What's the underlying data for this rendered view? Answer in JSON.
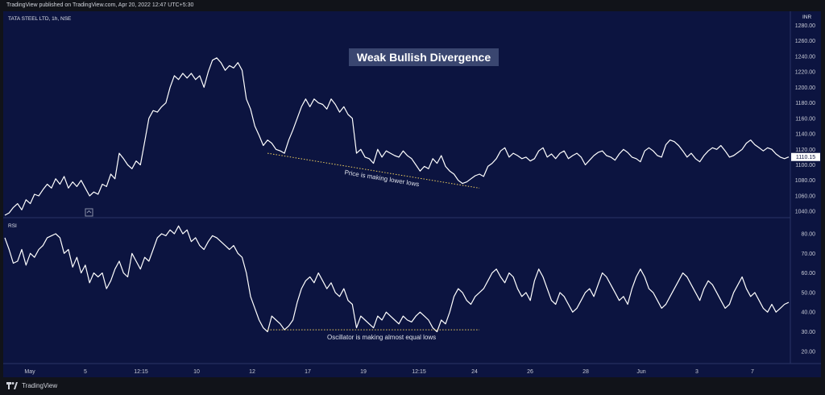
{
  "header": {
    "published_text": "TradingView published on TradingView.com, Apr 20, 2022 12:47 UTC+5:30"
  },
  "footer": {
    "brand": "TradingView",
    "logo_icon": "tradingview-logo-icon"
  },
  "colors": {
    "background": "#0c1440",
    "line": "#ffffff",
    "trendline": "#f0d060",
    "price_label_bg": "#ffffff",
    "title_bg": "#3a4670"
  },
  "chart_data": [
    {
      "type": "line",
      "pane": "price",
      "symbol_label": "TATA STEEL LTD, 1h, NSE",
      "title": "Weak Bullish Divergence",
      "currency": "INR",
      "last_price_label": "1110.15",
      "ylim": [
        1035,
        1295
      ],
      "yticks": [
        "1040.00",
        "1060.00",
        "1080.00",
        "1100.00",
        "1120.00",
        "1140.00",
        "1160.00",
        "1180.00",
        "1200.00",
        "1220.00",
        "1240.00",
        "1260.00",
        "1280.00"
      ],
      "values": [
        1035,
        1038,
        1045,
        1050,
        1042,
        1055,
        1050,
        1062,
        1060,
        1068,
        1075,
        1070,
        1082,
        1075,
        1085,
        1070,
        1078,
        1072,
        1080,
        1070,
        1060,
        1065,
        1062,
        1075,
        1072,
        1088,
        1082,
        1115,
        1108,
        1100,
        1095,
        1105,
        1100,
        1130,
        1160,
        1170,
        1168,
        1175,
        1180,
        1200,
        1215,
        1210,
        1218,
        1212,
        1218,
        1210,
        1215,
        1200,
        1220,
        1235,
        1238,
        1232,
        1222,
        1228,
        1225,
        1232,
        1222,
        1185,
        1172,
        1150,
        1138,
        1125,
        1132,
        1128,
        1120,
        1118,
        1115,
        1132,
        1145,
        1160,
        1175,
        1185,
        1175,
        1185,
        1180,
        1178,
        1172,
        1185,
        1178,
        1168,
        1175,
        1165,
        1160,
        1115,
        1120,
        1110,
        1108,
        1102,
        1120,
        1110,
        1118,
        1115,
        1112,
        1110,
        1118,
        1112,
        1108,
        1100,
        1092,
        1098,
        1095,
        1108,
        1102,
        1112,
        1098,
        1092,
        1088,
        1080,
        1076,
        1078,
        1082,
        1086,
        1088,
        1085,
        1098,
        1102,
        1108,
        1118,
        1122,
        1110,
        1115,
        1112,
        1108,
        1110,
        1105,
        1108,
        1118,
        1122,
        1110,
        1114,
        1108,
        1115,
        1118,
        1108,
        1112,
        1115,
        1110,
        1100,
        1106,
        1112,
        1116,
        1118,
        1112,
        1110,
        1106,
        1114,
        1120,
        1116,
        1110,
        1108,
        1104,
        1118,
        1122,
        1118,
        1112,
        1110,
        1126,
        1132,
        1130,
        1125,
        1118,
        1110,
        1115,
        1108,
        1104,
        1112,
        1118,
        1122,
        1120,
        1125,
        1118,
        1110,
        1112,
        1116,
        1120,
        1128,
        1132,
        1126,
        1122,
        1118,
        1122,
        1120,
        1114,
        1110,
        1108,
        1110.15
      ],
      "trendline": {
        "from_index": 62,
        "to_index": 112,
        "y_start": 1115,
        "y_end": 1070
      },
      "trendline_label": "Price is making lower lows"
    },
    {
      "type": "line",
      "pane": "oscillator",
      "title": "RSI",
      "ylim": [
        15,
        87
      ],
      "yticks": [
        "20.00",
        "30.00",
        "40.00",
        "50.00",
        "60.00",
        "70.00",
        "80.00"
      ],
      "values": [
        78,
        72,
        65,
        66,
        72,
        64,
        70,
        68,
        72,
        74,
        78,
        79,
        80,
        78,
        70,
        72,
        63,
        68,
        60,
        64,
        55,
        60,
        58,
        60,
        52,
        56,
        62,
        66,
        60,
        58,
        70,
        66,
        62,
        68,
        66,
        72,
        78,
        80,
        79,
        82,
        80,
        84,
        80,
        82,
        76,
        78,
        74,
        72,
        76,
        79,
        78,
        76,
        74,
        72,
        74,
        70,
        68,
        60,
        48,
        42,
        36,
        32,
        30,
        38,
        36,
        34,
        31,
        33,
        36,
        45,
        52,
        56,
        58,
        55,
        60,
        56,
        52,
        55,
        50,
        48,
        52,
        46,
        44,
        32,
        38,
        36,
        34,
        32,
        38,
        36,
        40,
        38,
        36,
        34,
        38,
        36,
        35,
        38,
        40,
        38,
        36,
        32,
        30,
        36,
        34,
        40,
        48,
        52,
        50,
        46,
        44,
        48,
        50,
        52,
        56,
        60,
        62,
        58,
        55,
        60,
        58,
        52,
        48,
        50,
        46,
        56,
        62,
        58,
        52,
        46,
        44,
        50,
        48,
        44,
        40,
        42,
        46,
        50,
        52,
        48,
        54,
        60,
        58,
        54,
        50,
        46,
        48,
        44,
        52,
        58,
        62,
        58,
        52,
        50,
        46,
        42,
        44,
        48,
        52,
        56,
        60,
        58,
        54,
        50,
        46,
        52,
        56,
        54,
        50,
        46,
        42,
        44,
        50,
        54,
        58,
        52,
        48,
        50,
        46,
        42,
        40,
        44,
        40,
        42,
        44,
        45
      ],
      "trendline": {
        "from_index": 62,
        "to_index": 112,
        "y_start": 31,
        "y_end": 31
      },
      "trendline_label": "Oscillator is making almost equal lows"
    }
  ],
  "x_axis": {
    "labels": [
      "May",
      "5",
      "12:15",
      "10",
      "12",
      "17",
      "19",
      "12:15",
      "24",
      "26",
      "28",
      "Jun",
      "3",
      "7"
    ]
  }
}
